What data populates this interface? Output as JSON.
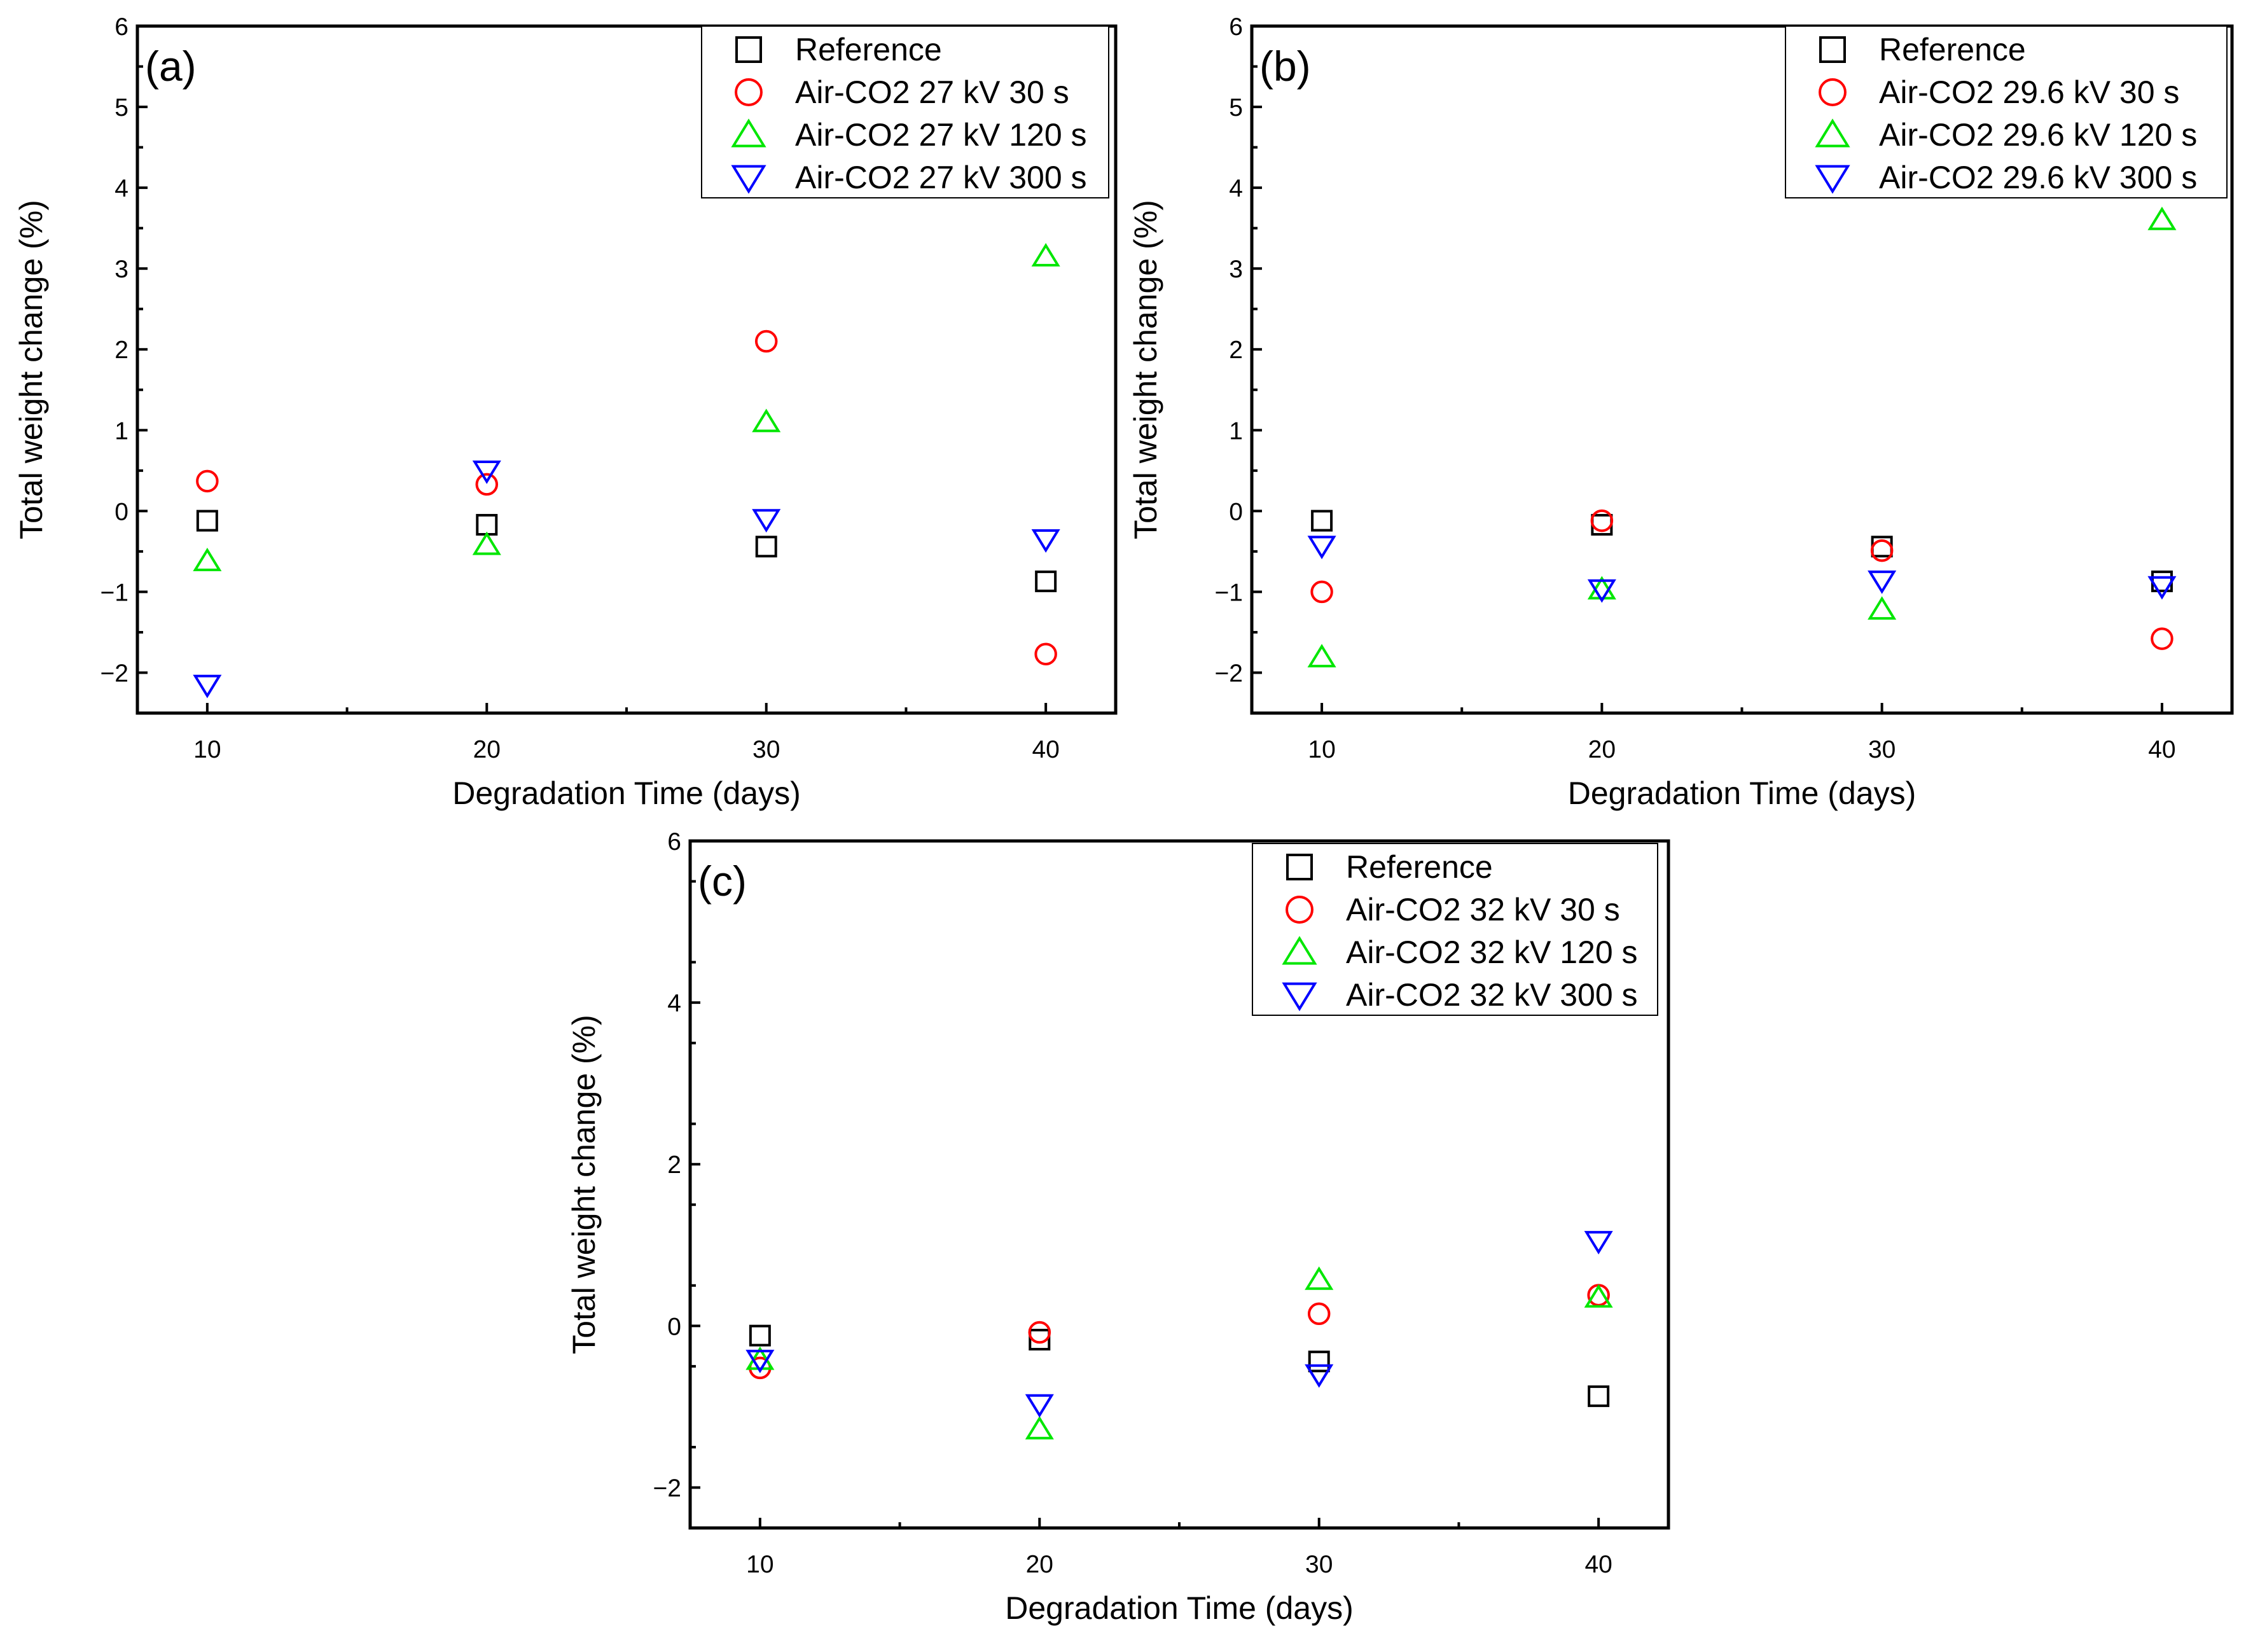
{
  "colors": {
    "reference": "#000000",
    "s30": "#ff0000",
    "s120": "#00e600",
    "s300": "#0000ff"
  },
  "chart_data": [
    {
      "type": "scatter",
      "panel_label": "(a)",
      "xlabel": "Degradation Time (days)",
      "ylabel": "Total weight change (%)",
      "xlim": [
        7.5,
        42.5
      ],
      "ylim": [
        -2.5,
        6
      ],
      "xticks": [
        10,
        20,
        30,
        40
      ],
      "xticklabels": [
        "10",
        "20",
        "30",
        "40"
      ],
      "yticks": [
        -2,
        -1,
        0,
        1,
        2,
        3,
        4,
        5,
        6
      ],
      "yticklabels": [
        "−2",
        "−1",
        "0",
        "1",
        "2",
        "3",
        "4",
        "5",
        "6"
      ],
      "legend_position": "top-right",
      "x": [
        10,
        20,
        30,
        40
      ],
      "series": [
        {
          "name": "Reference",
          "marker": "square",
          "color": "#000000",
          "values": [
            -0.12,
            -0.17,
            -0.44,
            -0.87
          ]
        },
        {
          "name": "Air-CO2 27 kV 30 s",
          "marker": "circle",
          "color": "#ff0000",
          "values": [
            0.37,
            0.33,
            2.1,
            -1.77
          ]
        },
        {
          "name": "Air-CO2 27 kV 120 s",
          "marker": "triangle-up",
          "color": "#00e600",
          "values": [
            -0.62,
            -0.42,
            1.1,
            3.15
          ]
        },
        {
          "name": "Air-CO2 27 kV 300 s",
          "marker": "triangle-down",
          "color": "#0000ff",
          "values": [
            -2.15,
            0.5,
            -0.1,
            -0.35
          ]
        }
      ]
    },
    {
      "type": "scatter",
      "panel_label": "(b)",
      "xlabel": "Degradation Time (days)",
      "ylabel": "Total weight change (%)",
      "xlim": [
        7.5,
        42.5
      ],
      "ylim": [
        -2.5,
        6
      ],
      "xticks": [
        10,
        20,
        30,
        40
      ],
      "xticklabels": [
        "10",
        "20",
        "30",
        "40"
      ],
      "yticks": [
        -2,
        -1,
        0,
        1,
        2,
        3,
        4,
        5,
        6
      ],
      "yticklabels": [
        "−2",
        "−1",
        "0",
        "1",
        "2",
        "3",
        "4",
        "5",
        "6"
      ],
      "legend_position": "top-right",
      "x": [
        10,
        20,
        30,
        40
      ],
      "series": [
        {
          "name": "Reference",
          "marker": "square",
          "color": "#000000",
          "values": [
            -0.12,
            -0.17,
            -0.44,
            -0.87
          ]
        },
        {
          "name": "Air-CO2 29.6 kV 30 s",
          "marker": "circle",
          "color": "#ff0000",
          "values": [
            -1.0,
            -0.12,
            -0.49,
            -1.58
          ]
        },
        {
          "name": "Air-CO2 29.6 kV 120 s",
          "marker": "triangle-up",
          "color": "#00e600",
          "values": [
            -1.81,
            -0.97,
            -1.22,
            3.6
          ]
        },
        {
          "name": "Air-CO2 29.6 kV 300 s",
          "marker": "triangle-down",
          "color": "#0000ff",
          "values": [
            -0.43,
            -0.97,
            -0.86,
            -0.93
          ]
        }
      ]
    },
    {
      "type": "scatter",
      "panel_label": "(c)",
      "xlabel": "Degradation Time (days)",
      "ylabel": "Total weight change (%)",
      "xlim": [
        7.5,
        42.5
      ],
      "ylim": [
        -2.5,
        6
      ],
      "xticks": [
        10,
        20,
        30,
        40
      ],
      "xticklabels": [
        "10",
        "20",
        "30",
        "40"
      ],
      "yticks": [
        -2,
        0,
        2,
        4,
        6
      ],
      "yticklabels": [
        "−2",
        "0",
        "2",
        "4",
        "6"
      ],
      "legend_position": "top-right",
      "x": [
        10,
        20,
        30,
        40
      ],
      "series": [
        {
          "name": "Reference",
          "marker": "square",
          "color": "#000000",
          "values": [
            -0.12,
            -0.17,
            -0.44,
            -0.87
          ]
        },
        {
          "name": "Air-CO2 32 kV 30 s",
          "marker": "circle",
          "color": "#ff0000",
          "values": [
            -0.52,
            -0.08,
            0.15,
            0.38
          ]
        },
        {
          "name": "Air-CO2 32 kV 120 s",
          "marker": "triangle-up",
          "color": "#00e600",
          "values": [
            -0.42,
            -1.28,
            0.57,
            0.35
          ]
        },
        {
          "name": "Air-CO2 32 kV 300 s",
          "marker": "triangle-down",
          "color": "#0000ff",
          "values": [
            -0.42,
            -0.97,
            -0.6,
            1.05
          ]
        }
      ]
    }
  ]
}
